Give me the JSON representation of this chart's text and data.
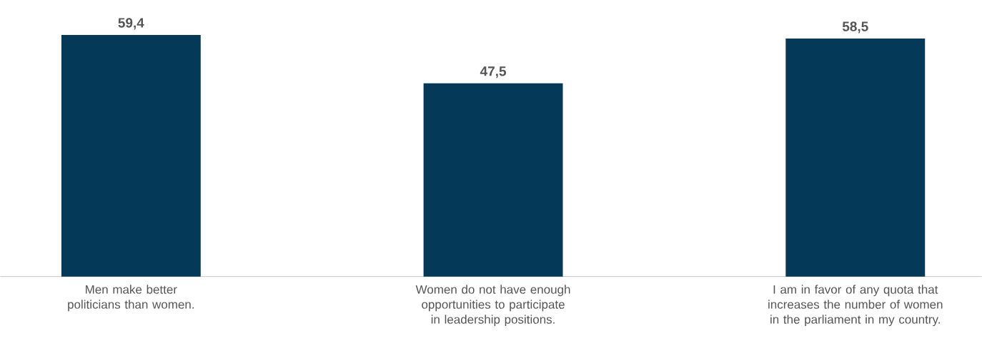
{
  "chart_data": {
    "type": "bar",
    "categories": [
      "Men make better politicians than women.",
      "Women do not have enough opportunities to participate in leadership positions.",
      "I am in favor of any quota that increases the number of women in the parliament in my country."
    ],
    "values": [
      59.4,
      47.5,
      58.5
    ],
    "value_labels": [
      "59,4",
      "47,5",
      "58,5"
    ],
    "color": "#043a57"
  }
}
